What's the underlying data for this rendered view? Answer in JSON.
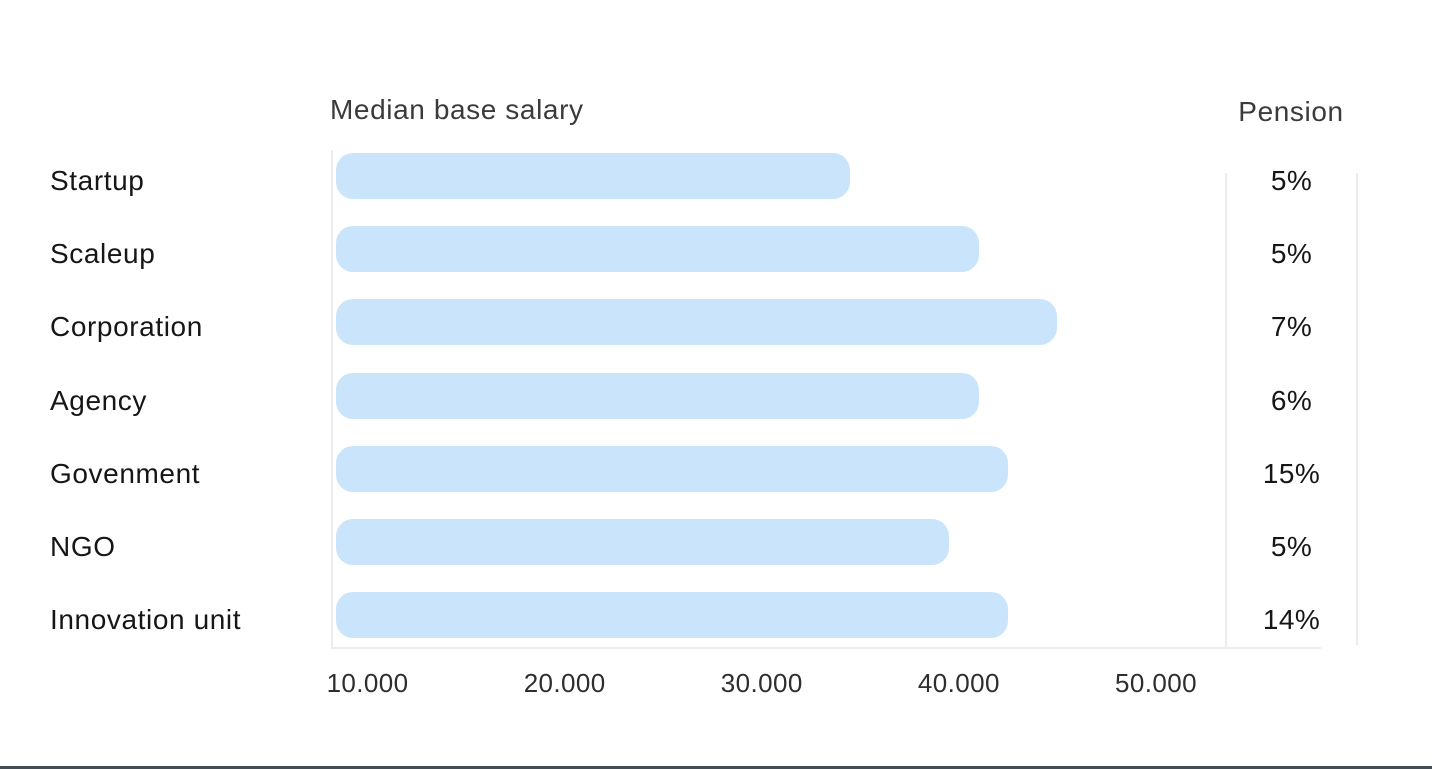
{
  "chart_data": {
    "type": "bar",
    "orientation": "horizontal",
    "title": "Median base salary",
    "secondary_column_title": "Pension",
    "categories": [
      "Startup",
      "Scaleup",
      "Corporation",
      "Agency",
      "Govenment",
      "NGO",
      "Innovation unit"
    ],
    "series": [
      {
        "name": "Median base salary",
        "values": [
          34500,
          41000,
          45000,
          41000,
          42500,
          39500,
          42500
        ]
      },
      {
        "name": "Pension",
        "values": [
          "5%",
          "5%",
          "7%",
          "6%",
          "15%",
          "5%",
          "14%"
        ]
      }
    ],
    "x_ticks": [
      {
        "label": "10.000",
        "value": 10000
      },
      {
        "label": "20.000",
        "value": 20000
      },
      {
        "label": "30.000",
        "value": 30000
      },
      {
        "label": "40.000",
        "value": 40000
      },
      {
        "label": "50.000",
        "value": 50000
      }
    ],
    "xlim": [
      8400,
      53500
    ],
    "xlabel": "",
    "ylabel": "",
    "grid": false,
    "legend_position": "none"
  },
  "colors": {
    "background": "#ffffff",
    "bar_fill": "#cae5fb",
    "axis_line": "#ececec",
    "pension_column_border": "#ececec",
    "title_text": "#3b3b3b",
    "label_text": "#161616",
    "tick_text": "#2e2e2e",
    "bottom_rule": "#424e56"
  }
}
